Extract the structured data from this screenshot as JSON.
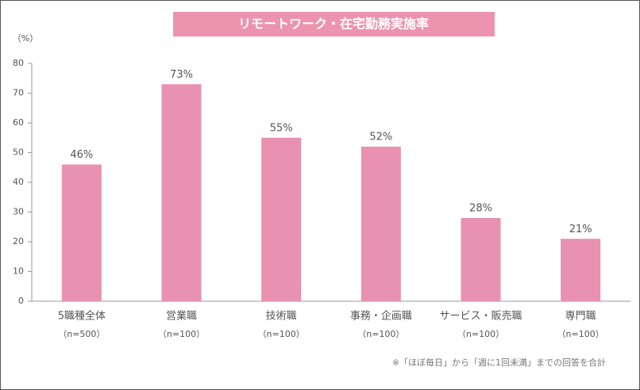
{
  "chart_data": {
    "type": "bar",
    "title": "リモートワーク・在宅勤務実施率",
    "y_unit": "（%）",
    "categories": [
      "5職種全体",
      "営業職",
      "技術職",
      "事務・企画職",
      "サービス・販売職",
      "専門職"
    ],
    "category_sublabels": [
      "（n=500）",
      "（n=100）",
      "（n=100）",
      "（n=100）",
      "（n=100）",
      "（n=100）"
    ],
    "values": [
      46,
      73,
      55,
      52,
      28,
      21
    ],
    "value_labels": [
      "46%",
      "73%",
      "55%",
      "52%",
      "28%",
      "21%"
    ],
    "color": "#e891b0",
    "ylim": [
      0,
      80
    ],
    "yticks": [
      0,
      10,
      20,
      30,
      40,
      50,
      60,
      70,
      80
    ],
    "grid": false,
    "footnote": "※「ほぼ毎日」から「週に1回未満」までの回答を合計"
  }
}
